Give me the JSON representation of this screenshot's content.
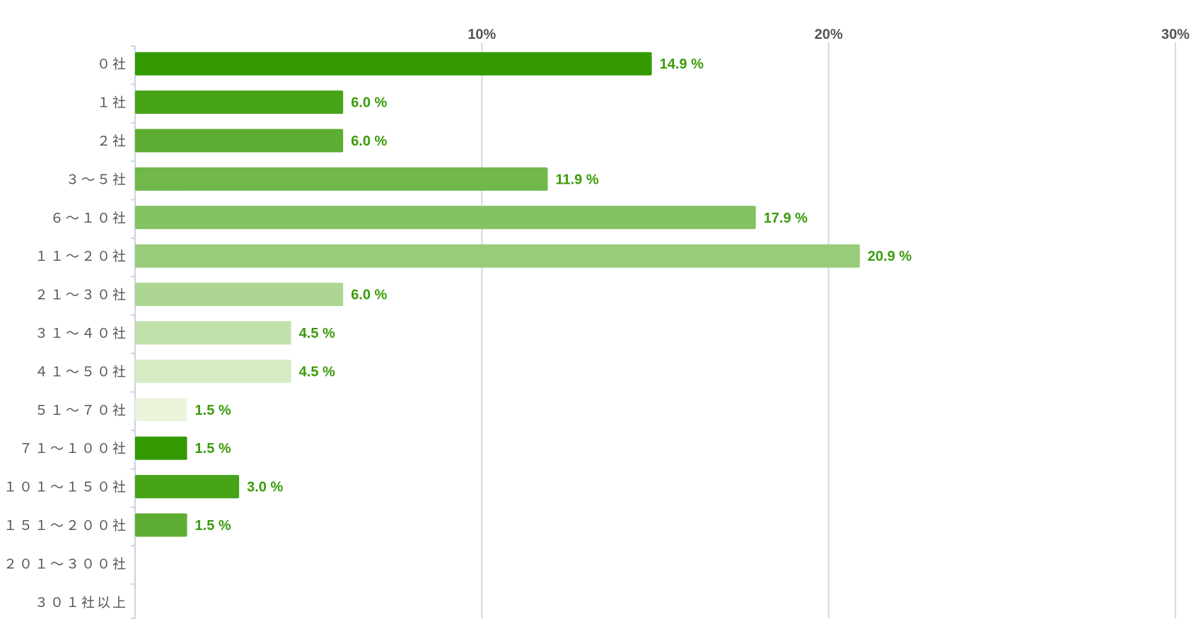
{
  "chart_data": {
    "type": "bar",
    "orientation": "horizontal",
    "categories": [
      "０社",
      "１社",
      "２社",
      "３～５社",
      "６～１０社",
      "１１～２０社",
      "２１～３０社",
      "３１～４０社",
      "４１～５０社",
      "５１～７０社",
      "７１～１００社",
      "１０１～１５０社",
      "１５１～２００社",
      "２０１～３００社",
      "３０１社以上"
    ],
    "values": [
      14.9,
      6.0,
      6.0,
      11.9,
      17.9,
      20.9,
      6.0,
      4.5,
      4.5,
      1.5,
      1.5,
      3.0,
      1.5,
      null,
      null
    ],
    "value_labels": [
      "14.9 %",
      "6.0 %",
      "6.0 %",
      "11.9 %",
      "17.9 %",
      "20.9 %",
      "6.0 %",
      "4.5 %",
      "4.5 %",
      "1.5 %",
      "1.5 %",
      "3.0 %",
      "1.5 %",
      "",
      ""
    ],
    "bar_colors": [
      "#339900",
      "#47a318",
      "#5cad31",
      "#70b849",
      "#85c262",
      "#99cc7a",
      "#add693",
      "#c2e0ab",
      "#d6ebc4",
      "#ebf5dc",
      "#339900",
      "#47a318",
      "#5cad31",
      "#70b849",
      "#85c262"
    ],
    "label_color": "#3a9b0a",
    "xlim": [
      0,
      30
    ],
    "x_ticks": [
      10,
      20,
      30
    ],
    "x_tick_labels": [
      "10%",
      "20%",
      "30%"
    ],
    "x_axis_position": "top",
    "grid": true,
    "title": "",
    "xlabel": "",
    "ylabel": ""
  }
}
